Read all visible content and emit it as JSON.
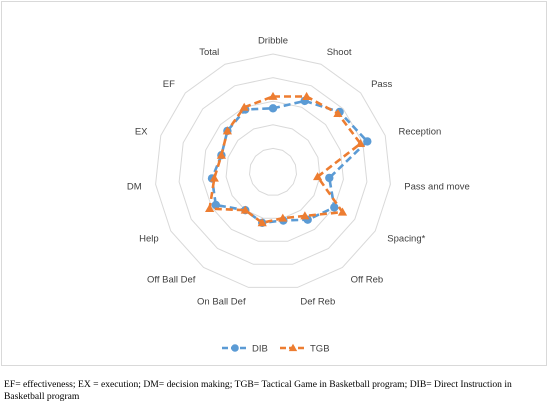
{
  "chart_data": {
    "type": "radar",
    "axes": [
      "Dribble",
      "Shoot",
      "Pass",
      "Reception",
      "Pass and move",
      "Spacing*",
      "Off Reb",
      "Def Reb",
      "On Ball Def",
      "Off Ball Def",
      "Help",
      "DM",
      "EX",
      "EF",
      "Total"
    ],
    "rlim": [
      0,
      5
    ],
    "rings": 5,
    "legend_position": "bottom",
    "series": [
      {
        "name": "DIB",
        "color": "#5b9bd5",
        "line_style": "dashed",
        "marker": "circle",
        "values": [
          2.7,
          3.3,
          3.8,
          4.2,
          2.4,
          3.0,
          2.5,
          2.1,
          2.2,
          2.0,
          2.8,
          2.6,
          2.3,
          2.6,
          2.9
        ]
      },
      {
        "name": "TGB",
        "color": "#ed7d31",
        "line_style": "dashed",
        "marker": "triangle",
        "values": [
          3.2,
          3.5,
          3.7,
          3.9,
          1.9,
          3.4,
          2.3,
          2.0,
          2.2,
          2.0,
          3.1,
          2.5,
          2.3,
          2.6,
          3.0
        ]
      }
    ]
  },
  "caption": {
    "line1": "EF= effectiveness; EX = execution; DM= decision making; TGB= Tactical Game in Basketball program; DIB= Direct Instruction in",
    "line2": "Basketball program"
  }
}
